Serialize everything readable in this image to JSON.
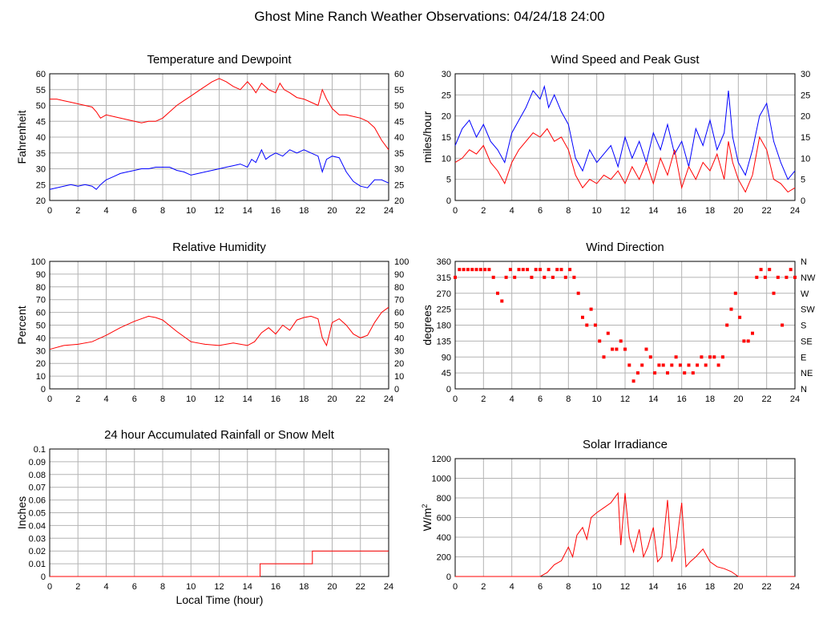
{
  "page_title": "Ghost Mine Ranch Weather Observations: 04/24/18 24:00",
  "colors": {
    "red": "#ff0000",
    "blue": "#0000ff",
    "grid": "#b4b4b4"
  },
  "x_axis_label": "Local Time (hour)",
  "chart_data": [
    {
      "id": "temp",
      "type": "line",
      "title": "Temperature and Dewpoint",
      "ylabel": "Fahrenheit",
      "xlim": [
        0,
        24
      ],
      "ylim": [
        20,
        60
      ],
      "yticks": [
        20,
        25,
        30,
        35,
        40,
        45,
        50,
        55,
        60
      ],
      "right_axis": true,
      "series": [
        {
          "color": "#ff0000",
          "x": [
            0,
            0.5,
            1,
            1.5,
            2,
            2.5,
            3,
            3.3,
            3.6,
            4,
            4.5,
            5,
            5.5,
            6,
            6.5,
            7,
            7.5,
            8,
            8.5,
            9,
            9.5,
            10,
            10.5,
            11,
            11.5,
            12,
            12.5,
            13,
            13.5,
            14,
            14.3,
            14.6,
            15,
            15.5,
            16,
            16.3,
            16.6,
            17,
            17.5,
            18,
            18.5,
            19,
            19.3,
            19.6,
            20,
            20.5,
            21,
            21.5,
            22,
            22.5,
            23,
            23.5,
            24
          ],
          "y": [
            52,
            52,
            51.5,
            51,
            50.5,
            50,
            49.5,
            48,
            46,
            47,
            46.5,
            46,
            45.5,
            45,
            44.5,
            45,
            45,
            46,
            48,
            50,
            51.5,
            53,
            54.5,
            56,
            57.5,
            58.5,
            57.5,
            56,
            55,
            57.5,
            56,
            54,
            57,
            55,
            54,
            57,
            55,
            54,
            52.5,
            52,
            51,
            50,
            55,
            52,
            49,
            47,
            47,
            46.5,
            46,
            45,
            43,
            39,
            36
          ]
        },
        {
          "color": "#0000ff",
          "x": [
            0,
            0.5,
            1,
            1.5,
            2,
            2.5,
            3,
            3.3,
            3.6,
            4,
            4.5,
            5,
            5.5,
            6,
            6.5,
            7,
            7.5,
            8,
            8.5,
            9,
            9.5,
            10,
            10.5,
            11,
            11.5,
            12,
            12.5,
            13,
            13.5,
            14,
            14.3,
            14.6,
            15,
            15.3,
            15.6,
            16,
            16.5,
            17,
            17.5,
            18,
            18.5,
            19,
            19.3,
            19.6,
            20,
            20.5,
            21,
            21.5,
            22,
            22.5,
            23,
            23.5,
            24
          ],
          "y": [
            23.5,
            24,
            24.5,
            25,
            24.5,
            25,
            24.5,
            23.5,
            25,
            26.5,
            27.5,
            28.5,
            29,
            29.5,
            30,
            30,
            30.5,
            30.5,
            30.5,
            29.5,
            29,
            28,
            28.5,
            29,
            29.5,
            30,
            30.5,
            31,
            31.5,
            30.5,
            33,
            32,
            36,
            33,
            34,
            35,
            34,
            36,
            35,
            36,
            35,
            34,
            29,
            33,
            34,
            33.5,
            29,
            26,
            24.5,
            24,
            26.5,
            26.5,
            25.5
          ]
        }
      ]
    },
    {
      "id": "wind",
      "type": "line",
      "title": "Wind Speed and Peak Gust",
      "ylabel": "miles/hour",
      "xlim": [
        0,
        24
      ],
      "ylim": [
        0,
        30
      ],
      "yticks": [
        0,
        5,
        10,
        15,
        20,
        25,
        30
      ],
      "right_axis": true,
      "series": [
        {
          "color": "#0000ff",
          "x": [
            0,
            0.5,
            1,
            1.5,
            2,
            2.5,
            3,
            3.5,
            4,
            4.5,
            5,
            5.5,
            6,
            6.3,
            6.6,
            7,
            7.5,
            8,
            8.5,
            9,
            9.5,
            10,
            10.5,
            11,
            11.5,
            12,
            12.5,
            13,
            13.5,
            14,
            14.5,
            15,
            15.5,
            16,
            16.5,
            17,
            17.5,
            18,
            18.5,
            19,
            19.3,
            19.6,
            20,
            20.5,
            21,
            21.5,
            22,
            22.5,
            23,
            23.5,
            24
          ],
          "y": [
            13,
            17,
            19,
            15,
            18,
            14,
            12,
            9,
            16,
            19,
            22,
            26,
            24,
            27,
            22,
            25,
            21,
            18,
            10,
            7,
            12,
            9,
            11,
            13,
            8,
            15,
            10,
            14,
            9,
            16,
            12,
            18,
            11,
            14,
            8,
            17,
            13,
            19,
            12,
            16,
            26,
            15,
            9,
            6,
            12,
            20,
            23,
            14,
            9,
            5,
            7
          ]
        },
        {
          "color": "#ff0000",
          "x": [
            0,
            0.5,
            1,
            1.5,
            2,
            2.5,
            3,
            3.5,
            4,
            4.5,
            5,
            5.5,
            6,
            6.5,
            7,
            7.5,
            8,
            8.5,
            9,
            9.5,
            10,
            10.5,
            11,
            11.5,
            12,
            12.5,
            13,
            13.5,
            14,
            14.5,
            15,
            15.5,
            16,
            16.5,
            17,
            17.5,
            18,
            18.5,
            19,
            19.3,
            19.6,
            20,
            20.5,
            21,
            21.5,
            22,
            22.5,
            23,
            23.5,
            24
          ],
          "y": [
            9,
            10,
            12,
            11,
            13,
            9,
            7,
            4,
            9,
            12,
            14,
            16,
            15,
            17,
            14,
            15,
            12,
            6,
            3,
            5,
            4,
            6,
            5,
            7,
            4,
            8,
            5,
            9,
            4,
            10,
            6,
            12,
            3,
            8,
            5,
            9,
            7,
            11,
            5,
            14,
            9,
            5,
            2,
            6,
            15,
            12,
            5,
            4,
            2,
            3
          ]
        }
      ]
    },
    {
      "id": "rh",
      "type": "line",
      "title": "Relative Humidity",
      "ylabel": "Percent",
      "xlim": [
        0,
        24
      ],
      "ylim": [
        0,
        100
      ],
      "yticks": [
        0,
        10,
        20,
        30,
        40,
        50,
        60,
        70,
        80,
        90,
        100
      ],
      "right_axis": true,
      "series": [
        {
          "color": "#ff0000",
          "x": [
            0,
            1,
            2,
            3,
            4,
            5,
            6,
            7,
            7.5,
            8,
            9,
            10,
            11,
            12,
            13,
            14,
            14.5,
            15,
            15.5,
            16,
            16.5,
            17,
            17.5,
            18,
            18.5,
            19,
            19.3,
            19.6,
            20,
            20.5,
            21,
            21.5,
            22,
            22.5,
            23,
            23.5,
            24
          ],
          "y": [
            31,
            34,
            35,
            37,
            42,
            48,
            53,
            57,
            56,
            54,
            45,
            37,
            35,
            34,
            36,
            34,
            37,
            44,
            48,
            43,
            50,
            46,
            54,
            56,
            57,
            55,
            40,
            34,
            52,
            55,
            50,
            43,
            40,
            42,
            52,
            60,
            64
          ]
        }
      ]
    },
    {
      "id": "wdir",
      "type": "scatter",
      "title": "Wind Direction",
      "ylabel": "degrees",
      "xlim": [
        0,
        24
      ],
      "ylim": [
        0,
        360
      ],
      "yticks": [
        0,
        45,
        90,
        135,
        180,
        225,
        270,
        315,
        360
      ],
      "right_labels": [
        "N",
        "NE",
        "E",
        "SE",
        "S",
        "SW",
        "W",
        "NW",
        "N"
      ],
      "series": [
        {
          "color": "#ff0000",
          "x": [
            0,
            0.3,
            0.6,
            0.9,
            1.2,
            1.5,
            1.8,
            2.1,
            2.4,
            2.7,
            3,
            3.3,
            3.6,
            3.9,
            4.2,
            4.5,
            4.8,
            5.1,
            5.4,
            5.7,
            6,
            6.3,
            6.6,
            6.9,
            7.2,
            7.5,
            7.8,
            8.1,
            8.4,
            8.7,
            9,
            9.3,
            9.6,
            9.9,
            10.2,
            10.5,
            10.8,
            11.1,
            11.4,
            11.7,
            12,
            12.3,
            12.6,
            12.9,
            13.2,
            13.5,
            13.8,
            14.1,
            14.4,
            14.7,
            15,
            15.3,
            15.6,
            15.9,
            16.2,
            16.5,
            16.8,
            17.1,
            17.4,
            17.7,
            18,
            18.3,
            18.6,
            18.9,
            19.2,
            19.5,
            19.8,
            20.1,
            20.4,
            20.7,
            21,
            21.3,
            21.6,
            21.9,
            22.2,
            22.5,
            22.8,
            23.1,
            23.4,
            23.7,
            24
          ],
          "y": [
            315,
            337,
            337,
            337,
            337,
            337,
            337,
            337,
            337,
            315,
            270,
            248,
            315,
            337,
            315,
            337,
            337,
            337,
            315,
            337,
            337,
            315,
            337,
            315,
            337,
            337,
            315,
            337,
            315,
            270,
            202,
            180,
            225,
            180,
            135,
            90,
            157,
            112,
            112,
            135,
            112,
            67,
            22,
            45,
            67,
            112,
            90,
            45,
            67,
            67,
            45,
            67,
            90,
            67,
            45,
            67,
            45,
            67,
            90,
            67,
            90,
            90,
            67,
            90,
            180,
            225,
            270,
            202,
            135,
            135,
            157,
            315,
            337,
            315,
            337,
            270,
            315,
            180,
            315,
            337,
            315
          ]
        }
      ]
    },
    {
      "id": "rain",
      "type": "line",
      "title": "24 hour Accumulated Rainfall or Snow Melt",
      "ylabel": "Inches",
      "xlim": [
        0,
        24
      ],
      "ylim": [
        0,
        0.1
      ],
      "yticks": [
        0,
        0.01,
        0.02,
        0.03,
        0.04,
        0.05,
        0.06,
        0.07,
        0.08,
        0.09,
        0.1
      ],
      "right_axis": false,
      "series": [
        {
          "color": "#ff0000",
          "x": [
            0,
            14.9,
            14.9,
            18.6,
            18.6,
            24
          ],
          "y": [
            0,
            0,
            0.01,
            0.01,
            0.02,
            0.02
          ]
        }
      ]
    },
    {
      "id": "solar",
      "type": "line",
      "title": "Solar Irradiance",
      "ylabel": "W/m²",
      "xlim": [
        0,
        24
      ],
      "ylim": [
        0,
        1200
      ],
      "yticks": [
        0,
        200,
        400,
        600,
        800,
        1000,
        1200
      ],
      "right_axis": false,
      "series": [
        {
          "color": "#ff0000",
          "x": [
            0,
            6,
            6.5,
            7,
            7.5,
            8,
            8.3,
            8.6,
            9,
            9.3,
            9.6,
            10,
            10.5,
            11,
            11.5,
            11.7,
            12,
            12.3,
            12.6,
            13,
            13.3,
            13.6,
            14,
            14.3,
            14.6,
            15,
            15.3,
            15.6,
            16,
            16.3,
            16.6,
            17,
            17.5,
            18,
            18.5,
            19,
            19.5,
            20,
            24
          ],
          "y": [
            0,
            0,
            40,
            120,
            160,
            300,
            200,
            420,
            500,
            380,
            600,
            650,
            700,
            750,
            850,
            320,
            850,
            400,
            250,
            480,
            200,
            300,
            500,
            150,
            200,
            780,
            150,
            300,
            750,
            100,
            150,
            200,
            280,
            150,
            100,
            80,
            50,
            0,
            0
          ]
        }
      ]
    }
  ]
}
